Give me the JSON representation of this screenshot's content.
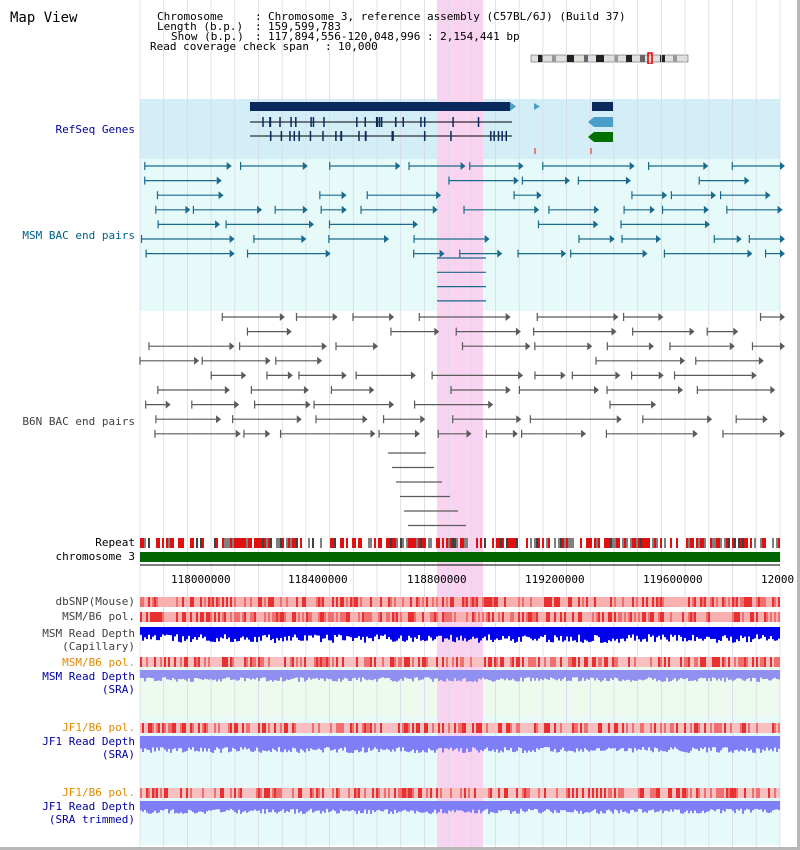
{
  "view_title": "Map View",
  "info": {
    "chromosome_key": "Chromosome",
    "chromosome_val": "Chromosome 3, reference assembly (C57BL/6J) (Build 37)",
    "length_key": "Length (b.p.)",
    "length_val": "159,599,783",
    "show_key": "Show (b.p.)",
    "show_val": "117,894,556-120,048,996 : 2,154,441 bp",
    "span_key": "Read coverage check span",
    "span_val": "10,000"
  },
  "tracks": {
    "refseq": "RefSeq Genes",
    "msm_bac": "MSM BAC end pairs",
    "b6n_bac": "B6N BAC end pairs",
    "repeat": "Repeat",
    "chromosome": "chromosome 3",
    "dbsnp": "dbSNP(Mouse)",
    "msm_b6_pol_1": "MSM/B6 pol.",
    "msm_read_depth_cap_1": "MSM Read Depth",
    "msm_read_depth_cap_2": "(Capillary)",
    "msm_b6_pol_2": "MSM/B6 pol.",
    "msm_read_depth_sra_1": "MSM Read Depth",
    "msm_read_depth_sra_2": "(SRA)",
    "jf1_b6_pol_1": "JF1/B6 pol.",
    "jf1_read_depth_sra_1": "JF1 Read Depth",
    "jf1_read_depth_sra_2": "(SRA)",
    "jf1_b6_pol_2": "JF1/B6 pol.",
    "jf1_read_depth_trim_1": "JF1 Read Depth",
    "jf1_read_depth_trim_2": "(SRA trimmed)"
  },
  "axis": {
    "ticks": [
      "118000000",
      "118400000",
      "118800000",
      "119200000",
      "119600000",
      "12000"
    ]
  },
  "colors": {
    "refseq_bg": "#d4eef8",
    "bac_bg": "#e6fafa",
    "highlight": "#f8d4f0",
    "gene_dark": "#0a2a5e",
    "gene_mid": "#4a9ec8",
    "gene_green": "#007000",
    "msm_bac": "#1a6a8c",
    "b6n_bac": "#5a5a5a",
    "chromosome_bar": "#006400",
    "depth_blue": "#0000ee",
    "depth_light": "#7e7ef6",
    "label_navy": "#0000a0",
    "label_teal": "#006080",
    "label_orange": "#e08a00"
  }
}
